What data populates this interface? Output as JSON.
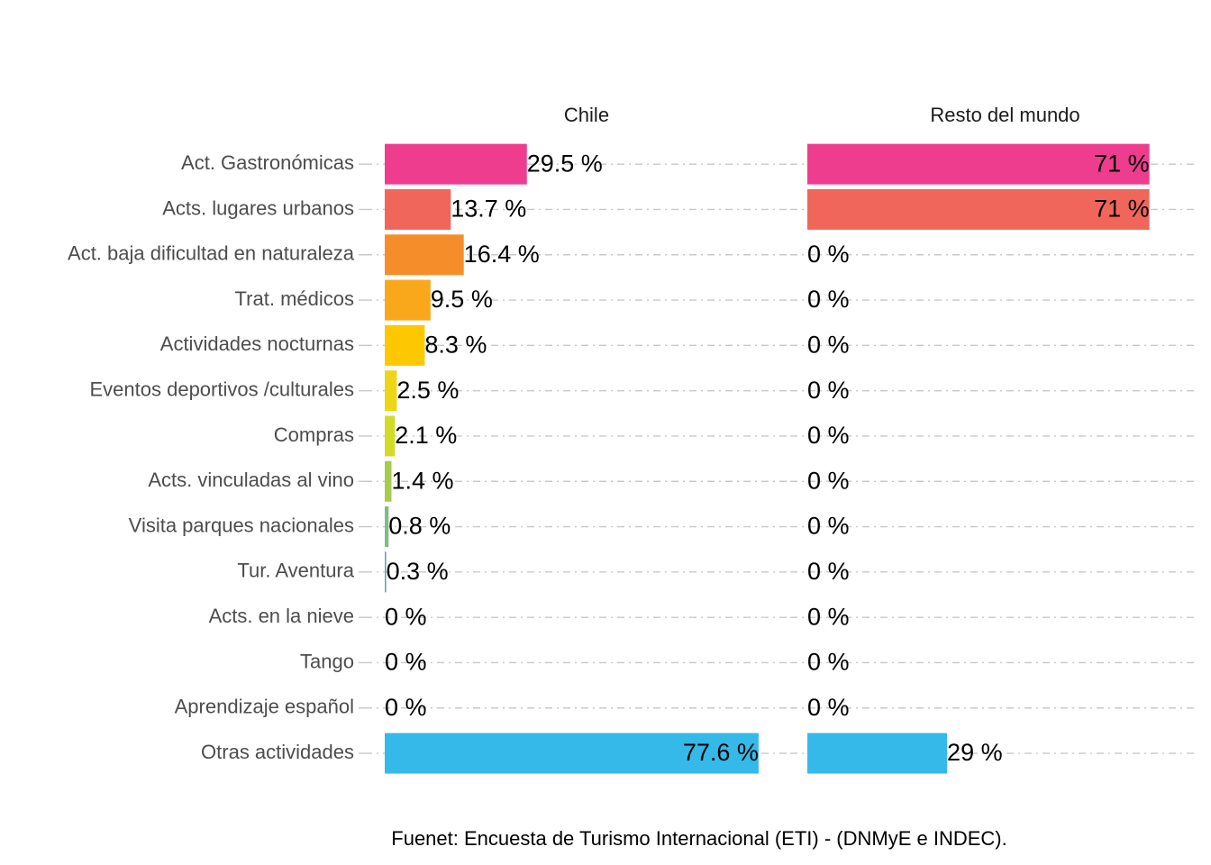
{
  "chart_data": {
    "type": "bar",
    "orientation": "horizontal",
    "categories": [
      "Act. Gastronómicas",
      "Acts. lugares urbanos",
      "Act. baja dificultad en naturaleza",
      "Trat. médicos",
      "Actividades nocturnas",
      "Eventos deportivos /culturales",
      "Compras",
      "Acts. vinculadas al vino",
      "Visita parques nacionales",
      "Tur. Aventura",
      "Acts. en la nieve",
      "Tango",
      "Aprendizaje español",
      "Otras actividades"
    ],
    "colors": [
      "#ee3d8f",
      "#f0665a",
      "#f68d2b",
      "#f9a81b",
      "#fdc800",
      "#eed616",
      "#d2dc27",
      "#a6cb4f",
      "#7dbd86",
      "#5ba8aa",
      "#4aa9c9",
      "#40b1d9",
      "#3ab6e2",
      "#35b9e9"
    ],
    "series": [
      {
        "name": "Chile",
        "values": [
          29.5,
          13.7,
          16.4,
          9.5,
          8.3,
          2.5,
          2.1,
          1.4,
          0.8,
          0.3,
          0,
          0,
          0,
          77.6
        ],
        "value_labels": [
          "29.5 %",
          "13.7 %",
          "16.4 %",
          "9.5 %",
          "8.3 %",
          "2.5 %",
          "2.1 %",
          "1.4 %",
          "0.8 %",
          "0.3 %",
          "0 %",
          "0 %",
          "0 %",
          "77.6 %"
        ]
      },
      {
        "name": "Resto del mundo",
        "values": [
          71,
          71,
          0,
          0,
          0,
          0,
          0,
          0,
          0,
          0,
          0,
          0,
          0,
          29
        ],
        "value_labels": [
          "71 %",
          "71 %",
          "0 %",
          "0 %",
          "0 %",
          "0 %",
          "0 %",
          "0 %",
          "0 %",
          "0 %",
          "0 %",
          "0 %",
          "0 %",
          "29 %"
        ]
      }
    ],
    "xlim": [
      0,
      83
    ],
    "grid": true,
    "caption": "Fuenet: Encuesta de Turismo Internacional (ETI) - (DNMyE e INDEC)."
  }
}
